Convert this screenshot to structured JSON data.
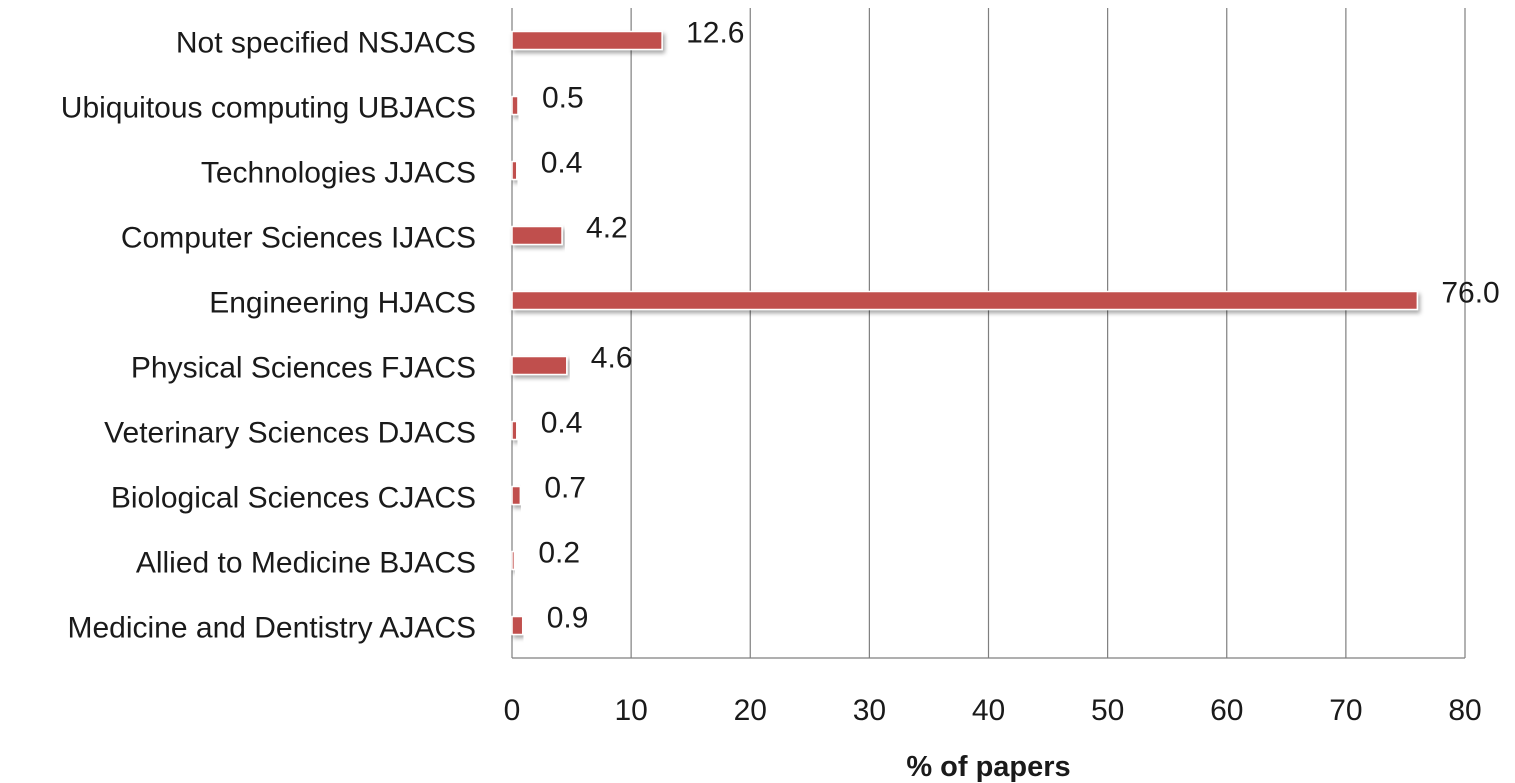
{
  "chart_data": {
    "type": "bar",
    "orientation": "horizontal",
    "categories": [
      "Medicine and Dentistry AJACS",
      "Allied to Medicine BJACS",
      "Biological Sciences CJACS",
      "Veterinary Sciences DJACS",
      "Physical Sciences FJACS",
      "Engineering HJACS",
      "Computer Sciences IJACS",
      "Technologies JJACS",
      "Ubiquitous computing UBJACS",
      "Not specified NSJACS"
    ],
    "values": [
      0.9,
      0.2,
      0.7,
      0.4,
      4.6,
      76.0,
      4.2,
      0.4,
      0.5,
      12.6
    ],
    "value_labels": [
      "0.9",
      "0.2",
      "0.7",
      "0.4",
      "4.6",
      "76.0",
      "4.2",
      "0.4",
      "0.5",
      "12.6"
    ],
    "xlabel": "% of papers",
    "ylabel": "",
    "title": "",
    "xlim": [
      0,
      80
    ],
    "xticks": [
      0,
      10,
      20,
      30,
      40,
      50,
      60,
      70,
      80
    ],
    "xtick_labels": [
      "0",
      "10",
      "20",
      "30",
      "40",
      "50",
      "60",
      "70",
      "80"
    ],
    "grid": "vertical",
    "legend": "none",
    "colors": {
      "bar": "#c0504d",
      "grid": "#7f7f7f",
      "text": "#1a1a1a"
    }
  }
}
